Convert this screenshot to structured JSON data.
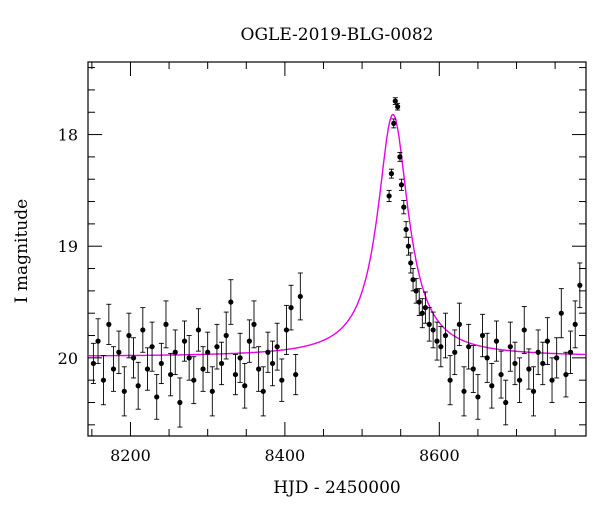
{
  "chart_data": {
    "type": "scatter",
    "title": "OGLE-2019-BLG-0082",
    "xlabel": "HJD - 2450000",
    "ylabel": "I magnitude",
    "xlim": [
      8145,
      8790
    ],
    "ylim": [
      20.7,
      17.35
    ],
    "y_inverted": true,
    "grid": false,
    "x_ticks": [
      8200,
      8400,
      8600
    ],
    "x_tick_labels": [
      "8200",
      "8400",
      "8600"
    ],
    "y_ticks": [
      18,
      19,
      20
    ],
    "y_tick_labels": [
      "18",
      "19",
      "20"
    ],
    "colors": {
      "data": "#000000",
      "model": "#e800e8"
    },
    "series": [
      {
        "kind": "points_with_errorbars",
        "x": [
          8152,
          8158,
          8165,
          8172,
          8178,
          8185,
          8192,
          8198,
          8204,
          8210,
          8216,
          8222,
          8228,
          8234,
          8240,
          8246,
          8252,
          8258,
          8264,
          8270,
          8276,
          8282,
          8288,
          8294,
          8300,
          8306,
          8312,
          8318,
          8324,
          8330,
          8336,
          8342,
          8348,
          8354,
          8360,
          8366,
          8372,
          8378,
          8384,
          8390,
          8396,
          8402,
          8408,
          8414,
          8420,
          8535,
          8538,
          8541,
          8543,
          8546,
          8549,
          8551,
          8554,
          8557,
          8560,
          8563,
          8566,
          8570,
          8574,
          8578,
          8582,
          8587,
          8592,
          8597,
          8602,
          8608,
          8614,
          8620,
          8626,
          8632,
          8638,
          8644,
          8650,
          8656,
          8662,
          8668,
          8674,
          8680,
          8686,
          8692,
          8698,
          8704,
          8710,
          8716,
          8722,
          8728,
          8734,
          8740,
          8746,
          8752,
          8758,
          8764,
          8770,
          8776,
          8782
        ],
        "y": [
          20.05,
          19.85,
          20.2,
          19.7,
          20.1,
          19.95,
          20.3,
          19.8,
          20.0,
          20.25,
          19.75,
          20.1,
          19.9,
          20.35,
          20.05,
          19.7,
          20.15,
          19.95,
          20.4,
          19.85,
          20.0,
          20.2,
          19.75,
          20.1,
          19.95,
          20.3,
          19.9,
          20.05,
          19.8,
          19.5,
          20.15,
          20.0,
          20.25,
          19.85,
          19.7,
          20.1,
          20.3,
          19.95,
          20.05,
          19.9,
          20.2,
          19.75,
          19.55,
          20.15,
          19.45,
          18.55,
          18.35,
          17.9,
          17.7,
          17.75,
          18.2,
          18.45,
          18.65,
          18.85,
          19.0,
          19.15,
          19.3,
          19.4,
          19.5,
          19.6,
          19.55,
          19.7,
          19.75,
          19.85,
          19.9,
          19.8,
          20.2,
          19.95,
          19.7,
          20.3,
          19.9,
          20.1,
          20.35,
          19.8,
          20.0,
          20.25,
          19.85,
          20.15,
          20.4,
          19.9,
          20.05,
          20.2,
          19.75,
          20.1,
          20.3,
          19.95,
          20.05,
          19.85,
          20.2,
          20.0,
          19.6,
          20.15,
          19.95,
          19.7,
          19.35
        ],
        "err": [
          0.18,
          0.2,
          0.22,
          0.18,
          0.2,
          0.19,
          0.22,
          0.2,
          0.18,
          0.21,
          0.2,
          0.19,
          0.22,
          0.2,
          0.18,
          0.21,
          0.19,
          0.2,
          0.22,
          0.18,
          0.2,
          0.21,
          0.19,
          0.2,
          0.18,
          0.22,
          0.2,
          0.19,
          0.21,
          0.2,
          0.18,
          0.22,
          0.2,
          0.19,
          0.21,
          0.2,
          0.22,
          0.18,
          0.2,
          0.21,
          0.19,
          0.22,
          0.2,
          0.18,
          0.21,
          0.05,
          0.04,
          0.04,
          0.03,
          0.03,
          0.04,
          0.05,
          0.06,
          0.07,
          0.08,
          0.09,
          0.1,
          0.11,
          0.12,
          0.13,
          0.14,
          0.15,
          0.16,
          0.17,
          0.18,
          0.2,
          0.22,
          0.2,
          0.19,
          0.22,
          0.2,
          0.21,
          0.2,
          0.19,
          0.22,
          0.2,
          0.18,
          0.21,
          0.2,
          0.22,
          0.19,
          0.2,
          0.21,
          0.18,
          0.22,
          0.2,
          0.19,
          0.21,
          0.2,
          0.18,
          0.22,
          0.2,
          0.19,
          0.21,
          0.2
        ]
      },
      {
        "kind": "model_curve",
        "baseline": 19.99,
        "peak_time": 8540,
        "peak_mag": 17.82,
        "timescale": 18
      }
    ]
  }
}
